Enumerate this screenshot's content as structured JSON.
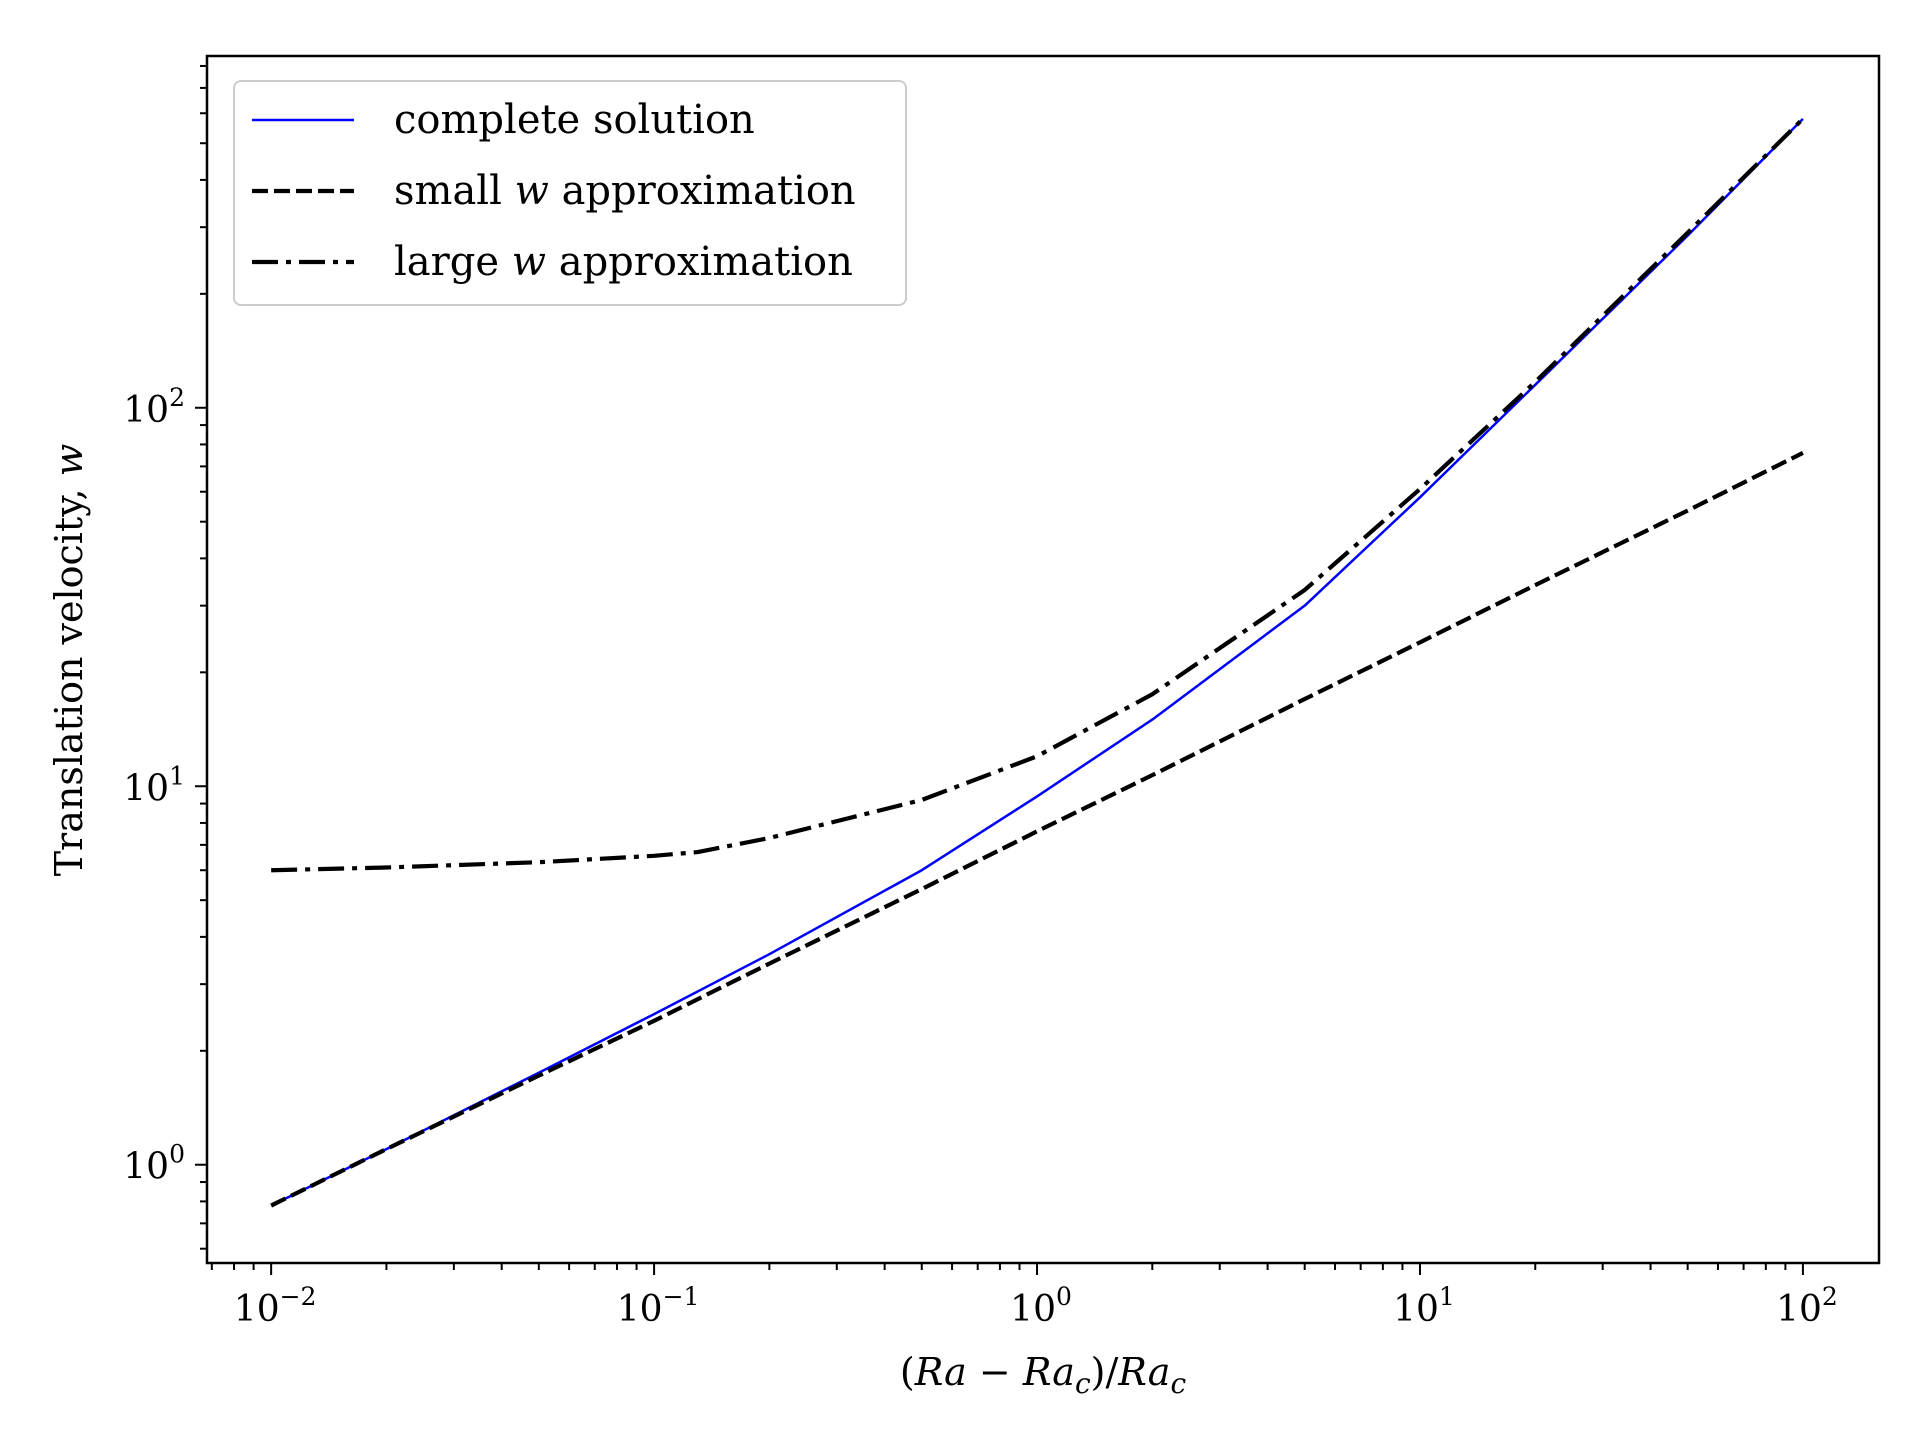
{
  "chart_data": {
    "type": "line",
    "title": "",
    "xscale": "log",
    "yscale": "log",
    "xlim": [
      0.0068,
      158
    ],
    "ylim": [
      0.55,
      850
    ],
    "xlabel": "(Ra − Ra_c)/Ra_c",
    "xlabel_parts": {
      "open": "(",
      "var1": "Ra",
      "minus": " − ",
      "var2": "Ra",
      "sub2": "c",
      "close": ")/",
      "var3": "Ra",
      "sub3": "c"
    },
    "ylabel": "Translation velocity, w",
    "ylabel_parts": {
      "text": "Translation velocity, ",
      "var": "w"
    },
    "x_ticks": [
      {
        "value": 0.01,
        "base": "10",
        "exp": "−2"
      },
      {
        "value": 0.1,
        "base": "10",
        "exp": "−1"
      },
      {
        "value": 1,
        "base": "10",
        "exp": "0"
      },
      {
        "value": 10,
        "base": "10",
        "exp": "1"
      },
      {
        "value": 100,
        "base": "10",
        "exp": "2"
      }
    ],
    "y_ticks": [
      {
        "value": 1,
        "base": "10",
        "exp": "0"
      },
      {
        "value": 10,
        "base": "10",
        "exp": "1"
      },
      {
        "value": 100,
        "base": "10",
        "exp": "2"
      }
    ],
    "legend_position": "upper-left",
    "grid": false,
    "series": [
      {
        "name": "complete solution",
        "legend_parts": {
          "pre": "complete solution",
          "var": "",
          "post": ""
        },
        "color": "#0000ff",
        "style": "solid",
        "x": [
          0.01,
          0.02,
          0.05,
          0.1,
          0.2,
          0.5,
          1,
          2,
          5,
          10,
          20,
          50,
          100
        ],
        "y": [
          0.78,
          1.1,
          1.75,
          2.5,
          3.6,
          6.0,
          9.4,
          15.0,
          30.0,
          58.0,
          115,
          285,
          580
        ]
      },
      {
        "name": "small w approximation",
        "legend_parts": {
          "pre": "small ",
          "var": "w",
          "post": " approximation"
        },
        "color": "#000000",
        "style": "dashed",
        "x": [
          0.01,
          0.02,
          0.05,
          0.1,
          0.2,
          0.5,
          1,
          2,
          5,
          10,
          20,
          50,
          100
        ],
        "y": [
          0.78,
          1.1,
          1.72,
          2.4,
          3.4,
          5.35,
          7.6,
          10.7,
          17.0,
          24.0,
          34.0,
          53.5,
          76.0
        ]
      },
      {
        "name": "large w approximation",
        "legend_parts": {
          "pre": "large ",
          "var": "w",
          "post": " approximation"
        },
        "color": "#000000",
        "style": "dashdot",
        "x": [
          0.01,
          0.02,
          0.05,
          0.1,
          0.13,
          0.2,
          0.5,
          1,
          2,
          5,
          10,
          20,
          50,
          100
        ],
        "y": [
          6.0,
          6.1,
          6.3,
          6.55,
          6.7,
          7.3,
          9.2,
          12.0,
          17.5,
          33.0,
          61.0,
          117,
          290,
          580
        ]
      }
    ]
  }
}
